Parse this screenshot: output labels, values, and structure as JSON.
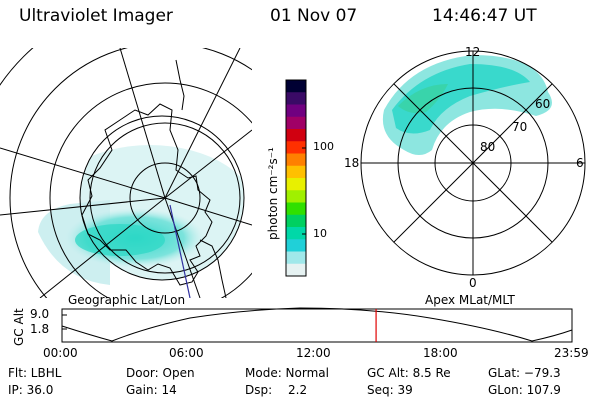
{
  "header": {
    "title": "Ultraviolet Imager",
    "date": "01 Nov 07",
    "time": "14:46:47 UT"
  },
  "left_panel": {
    "label": "Geographic Lat/Lon"
  },
  "right_panel": {
    "label": "Apex MLat/MLT",
    "mlt_labels": {
      "top": "12",
      "left": "18",
      "right": "6",
      "bottom": "0"
    },
    "lat_labels": [
      "60",
      "70",
      "80"
    ]
  },
  "colorbar": {
    "unit_label": "photon cm⁻²s⁻¹",
    "ticks": [
      "100",
      "10"
    ],
    "colors": [
      "#000033",
      "#3a0a66",
      "#700080",
      "#a00066",
      "#d00010",
      "#ff3000",
      "#ff8000",
      "#ffc000",
      "#e8f000",
      "#a0f000",
      "#30e000",
      "#00d060",
      "#00d8a8",
      "#20d0d8",
      "#a0e8ea",
      "#e6f2f2"
    ]
  },
  "altitude_plot": {
    "ylabel": "GC Alt",
    "yticks": [
      "9.0",
      "1.8"
    ],
    "xticks": [
      "00:00",
      "06:00",
      "12:00",
      "18:00",
      "23:59"
    ],
    "marker_time_hours": 14.78,
    "marker_color": "#e00000"
  },
  "info": {
    "flt": "Flt: LBHL",
    "ip": "IP: 36.0",
    "door": "Door: Open",
    "gain": "Gain: 14",
    "mode": "Mode: Normal",
    "dsp": "Dsp:",
    "dsp_val": "2.2",
    "gcalt": "GC Alt: 8.5 Re",
    "seq": "Seq: 39",
    "glat": "GLat: −79.3",
    "glon": "GLon: 107.9"
  },
  "colors": {
    "aurora_cyan": "#2ad6c8",
    "aurora_light": "#bfeeee",
    "grid": "#000000"
  }
}
